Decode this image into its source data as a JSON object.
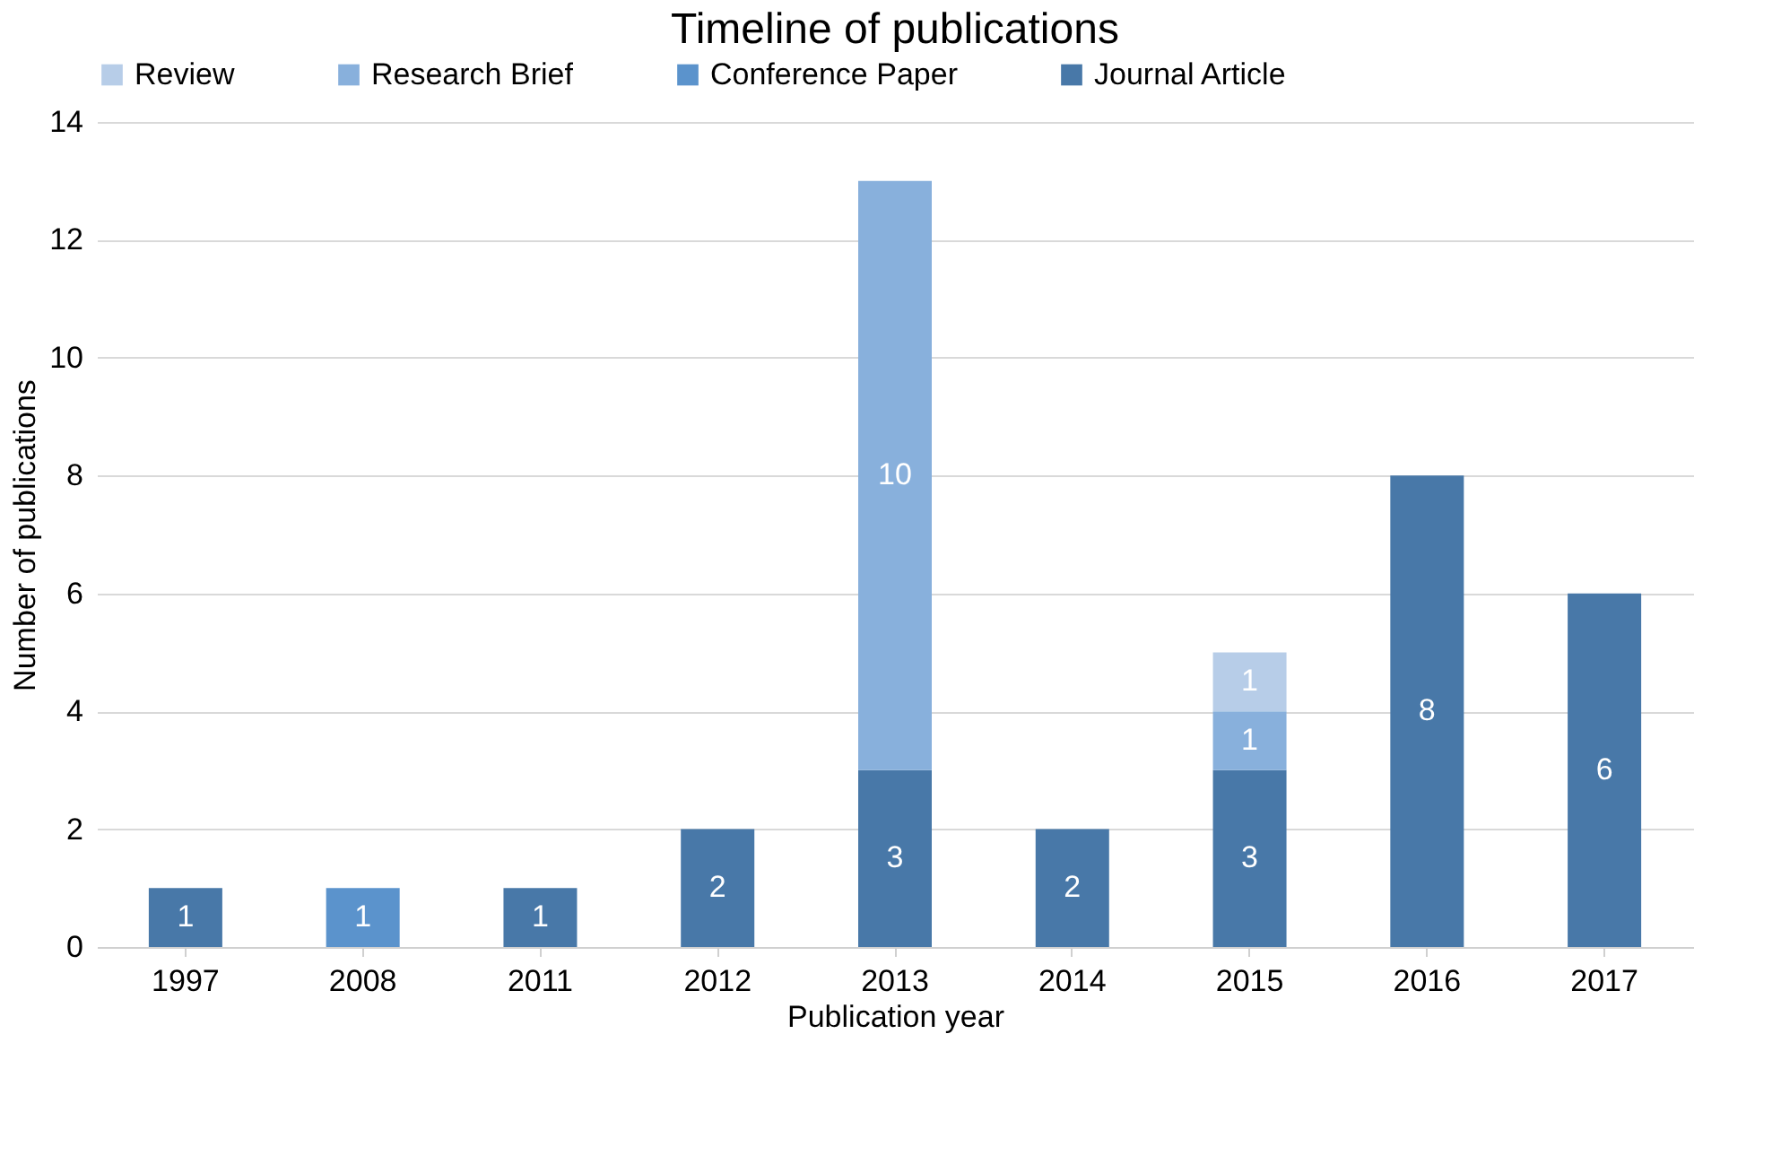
{
  "chart_data": {
    "type": "bar",
    "title": "Timeline of publications",
    "xlabel": "Publication year",
    "ylabel": "Number of publications",
    "categories": [
      "1997",
      "2008",
      "2011",
      "2012",
      "2013",
      "2014",
      "2015",
      "2016",
      "2017"
    ],
    "stacked": true,
    "series": [
      {
        "name": "Journal Article",
        "color": "#4878a8",
        "values": [
          1,
          null,
          1,
          2,
          3,
          2,
          3,
          8,
          6
        ]
      },
      {
        "name": "Conference Paper",
        "color": "#5b93cc",
        "values": [
          null,
          1,
          null,
          null,
          null,
          null,
          null,
          null,
          null
        ]
      },
      {
        "name": "Research Brief",
        "color": "#88b0dc",
        "values": [
          null,
          null,
          null,
          null,
          10,
          null,
          1,
          null,
          null
        ]
      },
      {
        "name": "Review",
        "color": "#b7cde8",
        "values": [
          null,
          null,
          null,
          null,
          null,
          null,
          1,
          null,
          null
        ]
      }
    ],
    "ylim": [
      0,
      14
    ],
    "yticks": [
      0,
      2,
      4,
      6,
      8,
      10,
      12,
      14
    ],
    "grid": "y",
    "legend": "top",
    "data_labels": true
  }
}
